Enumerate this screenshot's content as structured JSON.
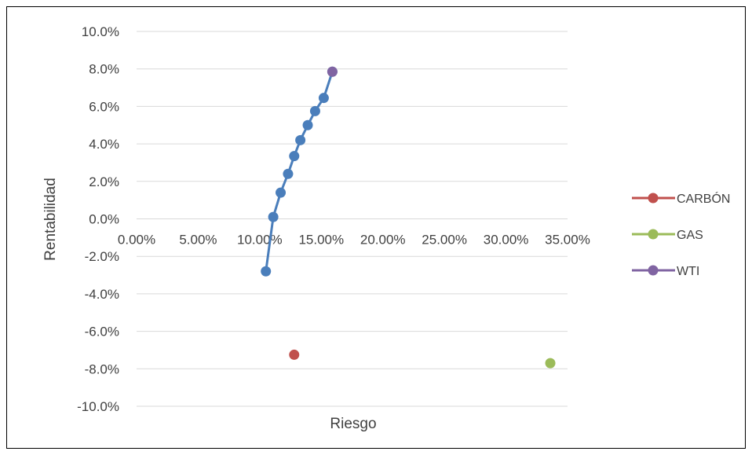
{
  "chart_data": {
    "type": "scatter",
    "title": "",
    "xlabel": "Riesgo",
    "ylabel": "Rentabilidad",
    "xlim": [
      0,
      35
    ],
    "ylim": [
      -10,
      10
    ],
    "grid": true,
    "legend_position": "right",
    "x_tick_labels": [
      "0.00%",
      "5.00%",
      "10.00%",
      "15.00%",
      "20.00%",
      "25.00%",
      "30.00%",
      "35.00%"
    ],
    "y_tick_labels": [
      "10.0%",
      "8.0%",
      "6.0%",
      "4.0%",
      "2.0%",
      "0.0%",
      "-2.0%",
      "-4.0%",
      "-6.0%",
      "-8.0%",
      "-10.0%"
    ],
    "series": [
      {
        "color": "#4a7ebb",
        "mode": "line+markers",
        "x": [
          10.5,
          11.1,
          11.7,
          12.3,
          12.8,
          13.3,
          13.9,
          14.5,
          15.2,
          15.9
        ],
        "y": [
          -2.8,
          0.1,
          1.4,
          2.4,
          3.35,
          4.2,
          5.0,
          5.75,
          6.45,
          7.85
        ]
      },
      {
        "name": "CARBÓN",
        "color": "#c0504d",
        "mode": "markers",
        "x": [
          12.8
        ],
        "y": [
          -7.25
        ]
      },
      {
        "name": "GAS",
        "color": "#9bbb59",
        "mode": "markers",
        "x": [
          33.6
        ],
        "y": [
          -7.7
        ]
      },
      {
        "name": "WTI",
        "color": "#8064a2",
        "mode": "markers",
        "x": [
          15.9
        ],
        "y": [
          7.85
        ]
      }
    ]
  }
}
